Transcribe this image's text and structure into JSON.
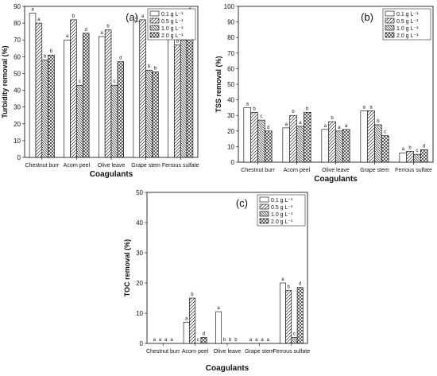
{
  "figure": {
    "legend_labels": [
      "0.1 g L⁻¹",
      "0.5 g L⁻¹",
      "1.0 g L⁻¹",
      "2.0 g L⁻¹"
    ],
    "fill_patterns": [
      "blank",
      "diagonal-lines",
      "dense-diagonal-lines",
      "crosshatch"
    ]
  },
  "chart_data": [
    {
      "type": "bar",
      "panel_label": "(a)",
      "title": "",
      "xlabel": "Coagulants",
      "ylabel": "Turbidity removal (%)",
      "ylim": [
        0,
        90
      ],
      "yticks": [
        0,
        10,
        20,
        30,
        40,
        50,
        60,
        70,
        80,
        90
      ],
      "legend": "top-right",
      "categories": [
        "Chestnut burr",
        "Acorn peel",
        "Olive leave",
        "Grape stem",
        "Ferrous sulfate"
      ],
      "series": [
        {
          "name": "0.1 g L⁻¹",
          "values": [
            86,
            70,
            72,
            81,
            75
          ],
          "letters": [
            "a",
            "a",
            "a",
            "a",
            "a"
          ]
        },
        {
          "name": "0.5 g L⁻¹",
          "values": [
            80,
            82,
            76,
            82,
            67
          ],
          "letters": [
            "a",
            "b",
            "b",
            "a",
            "b"
          ]
        },
        {
          "name": "1.0 g L⁻¹",
          "values": [
            58,
            43,
            43,
            52,
            70
          ],
          "letters": [
            "b",
            "c",
            "c",
            "b",
            "c"
          ]
        },
        {
          "name": "2.0 g L⁻¹",
          "values": [
            61,
            74,
            57,
            51,
            86
          ],
          "letters": [
            "b",
            "d",
            "d",
            "b",
            "d"
          ]
        }
      ]
    },
    {
      "type": "bar",
      "panel_label": "(b)",
      "title": "",
      "xlabel": "Coagulants",
      "ylabel": "TSS removal (%)",
      "ylim": [
        0,
        100
      ],
      "yticks": [
        0,
        10,
        20,
        30,
        40,
        50,
        60,
        70,
        80,
        90,
        100
      ],
      "legend": "top-right",
      "categories": [
        "Chestnut burr",
        "Acorn peel",
        "Olive leave",
        "Grape stem",
        "Ferrous sulfate"
      ],
      "series": [
        {
          "name": "0.1 g L⁻¹",
          "values": [
            35,
            22,
            21,
            33,
            6
          ],
          "letters": [
            "a",
            "a",
            "a",
            "a",
            "a"
          ]
        },
        {
          "name": "0.5 g L⁻¹",
          "values": [
            32,
            30,
            26,
            33,
            7
          ],
          "letters": [
            "b",
            "b",
            "b",
            "a",
            "b"
          ]
        },
        {
          "name": "1.0 g L⁻¹",
          "values": [
            27,
            23,
            20,
            24,
            5
          ],
          "letters": [
            "c",
            "a",
            "a",
            "b",
            "c"
          ]
        },
        {
          "name": "2.0 g L⁻¹",
          "values": [
            20,
            32,
            21,
            17,
            8
          ],
          "letters": [
            "d",
            "b",
            "a",
            "c",
            "d"
          ]
        }
      ]
    },
    {
      "type": "bar",
      "panel_label": "(c)",
      "title": "",
      "xlabel": "Coagulants",
      "ylabel": "TOC removal (%)",
      "ylim": [
        0,
        50
      ],
      "yticks": [
        0,
        10,
        20,
        30,
        40,
        50
      ],
      "legend": "top-right",
      "categories": [
        "Chestnut burr",
        "Acorn peel",
        "Olive leave",
        "Grape stem",
        "Ferrous sulfate"
      ],
      "series": [
        {
          "name": "0.1 g L⁻¹",
          "values": [
            0,
            7,
            10.5,
            0,
            20
          ],
          "letters": [
            "a",
            "a",
            "a",
            "a",
            "a"
          ]
        },
        {
          "name": "0.5 g L⁻¹",
          "values": [
            0,
            15,
            0,
            0,
            17.5
          ],
          "letters": [
            "a",
            "b",
            "b",
            "a",
            "b"
          ]
        },
        {
          "name": "1.0 g L⁻¹",
          "values": [
            0,
            0,
            0,
            0,
            2
          ],
          "letters": [
            "a",
            "c",
            "b",
            "a",
            "c"
          ]
        },
        {
          "name": "2.0 g L⁻¹",
          "values": [
            0,
            2,
            0,
            0,
            18.5
          ],
          "letters": [
            "a",
            "d",
            "b",
            "a",
            "d"
          ]
        }
      ]
    }
  ]
}
